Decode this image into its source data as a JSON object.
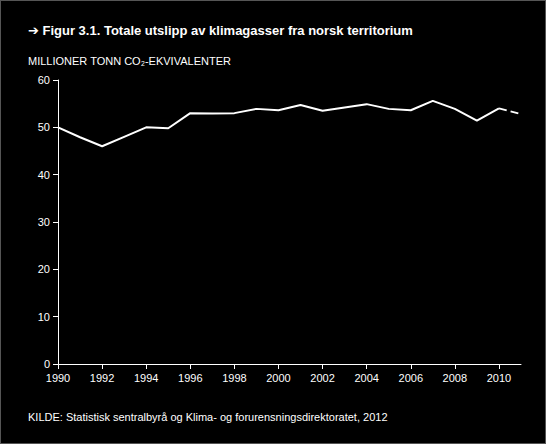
{
  "chart_data": {
    "type": "line",
    "title": "➔ Figur 3.1. Totale utslipp av klimagasser fra norsk territorium",
    "y_label": "MILLIONER TONN CO₂-EKVIVALENTER",
    "source": "KILDE: Statistisk sentralbyrå og Klima- og forurensningsdirektoratet, 2012",
    "x": [
      1990,
      1991,
      1992,
      1993,
      1994,
      1995,
      1996,
      1997,
      1998,
      1999,
      2000,
      2001,
      2002,
      2003,
      2004,
      2005,
      2006,
      2007,
      2008,
      2009,
      2010,
      2011
    ],
    "series": [
      {
        "color": "#ffffff",
        "line_style": "solid",
        "values": [
          50,
          47.9,
          46,
          48,
          50,
          49.8,
          53,
          52.9,
          53,
          53.9,
          53.6,
          54.7,
          53.5,
          54.2,
          54.9,
          53.9,
          53.6,
          55.6,
          53.9,
          51.4,
          54,
          null
        ]
      },
      {
        "color": "#ffffff",
        "line_style": "dashed",
        "values": [
          null,
          null,
          null,
          null,
          null,
          null,
          null,
          null,
          null,
          null,
          null,
          null,
          null,
          null,
          null,
          null,
          null,
          null,
          null,
          null,
          54,
          52.8
        ]
      }
    ],
    "xlim": [
      1990,
      2011
    ],
    "xticks": [
      1990,
      1992,
      1994,
      1996,
      1998,
      2000,
      2002,
      2004,
      2006,
      2008,
      2010
    ],
    "ylim": [
      0,
      60
    ],
    "yticks": [
      0,
      10,
      20,
      30,
      40,
      50,
      60
    ],
    "grid": false
  }
}
